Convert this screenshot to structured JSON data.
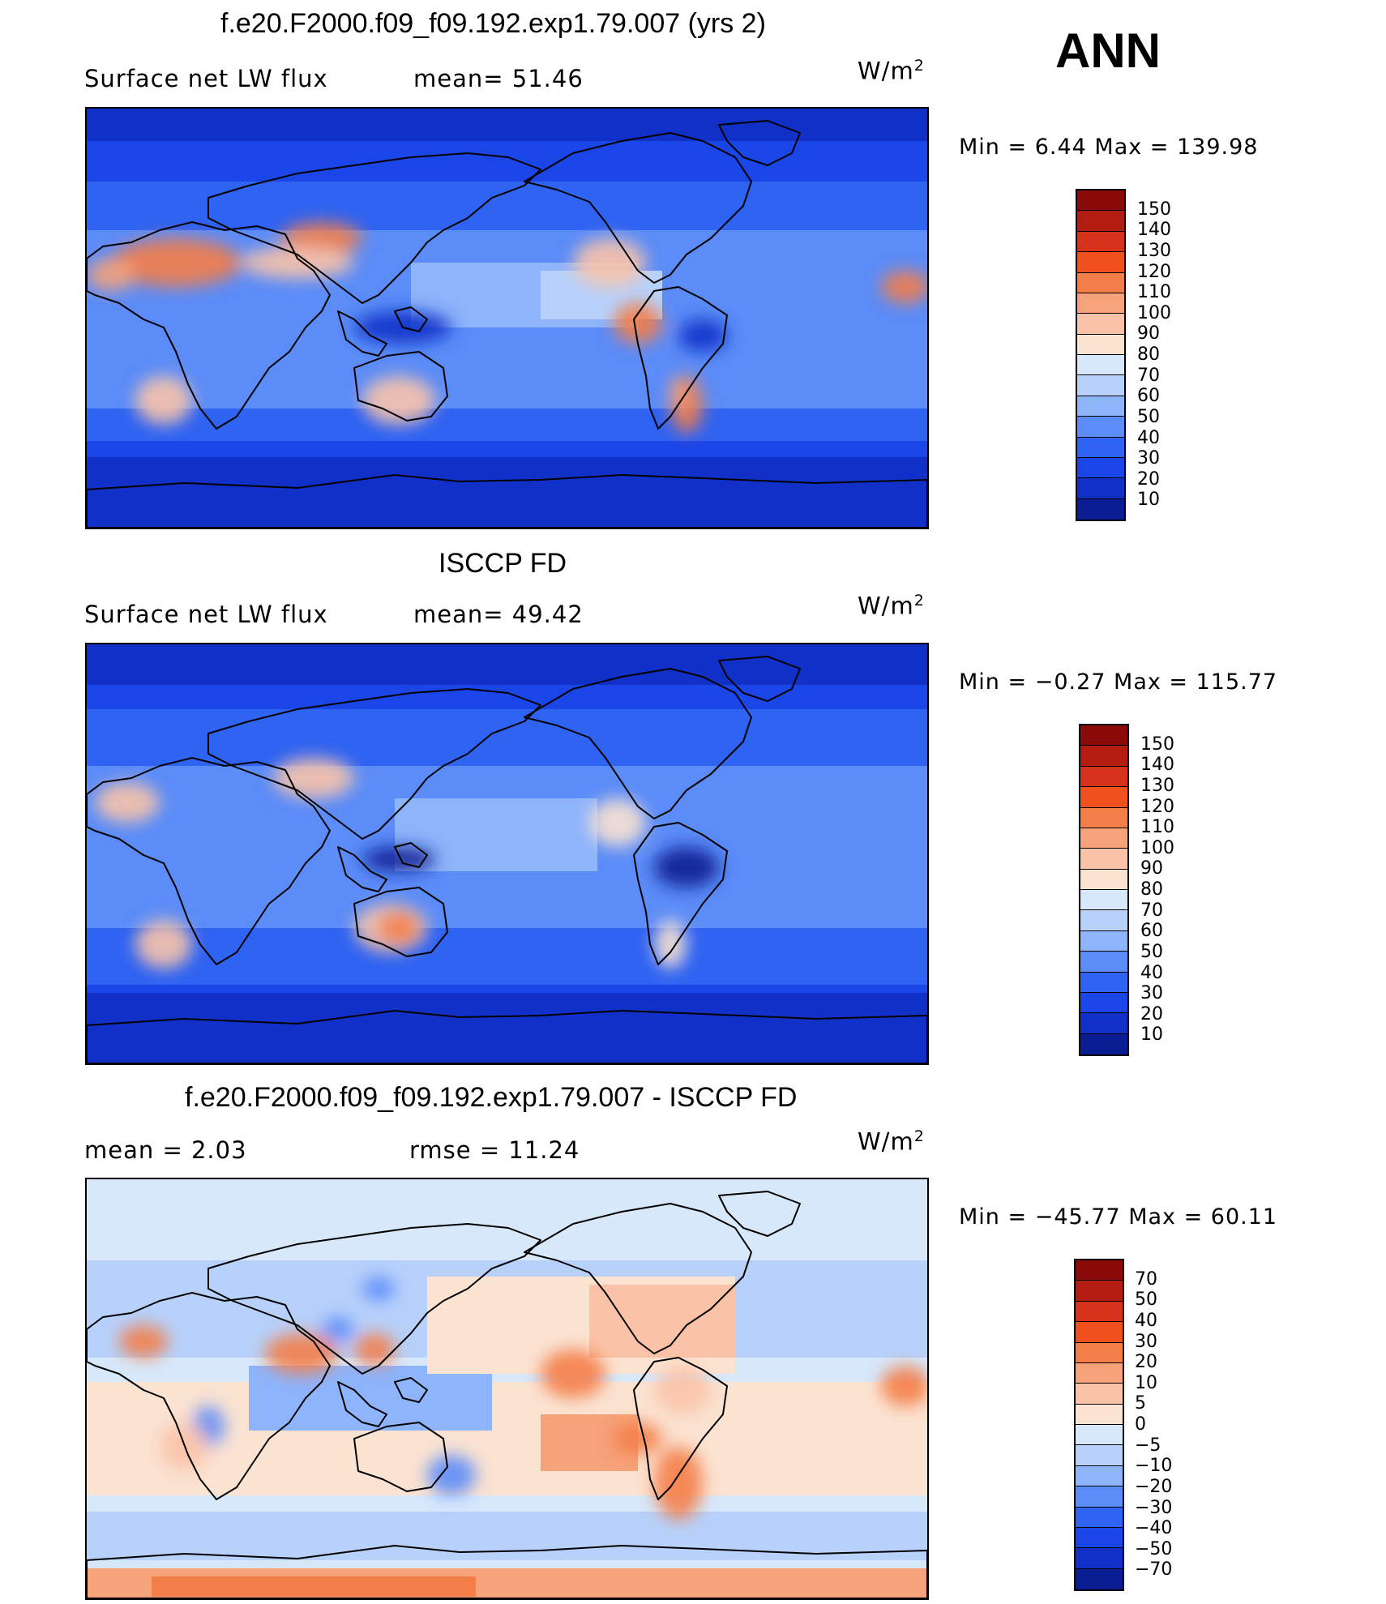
{
  "season": "ANN",
  "panels": [
    {
      "id": "model",
      "title": "f.e20.F2000.f09_f09.192.exp1.79.007 (yrs 2)",
      "left_text": "Surface net LW flux",
      "mid_text": "mean=  51.46",
      "units_main": "W/m",
      "units_sup": "2",
      "minmax": "Min =   6.44 Max = 139.98",
      "palette": "lw",
      "colorbar_colors": [
        "#8b0a0a",
        "#b31c10",
        "#d6311a",
        "#f0501e",
        "#f47e48",
        "#f6a27a",
        "#fac3a8",
        "#fbe3d2",
        "#d7e8fb",
        "#b7d1fb",
        "#8eb4fb",
        "#5b8cf8",
        "#2f63f2",
        "#1a46e8",
        "#1030c8",
        "#0a1d92"
      ],
      "colorbar_labels": [
        "150",
        "140",
        "130",
        "120",
        "110",
        "100",
        "90",
        "80",
        "70",
        "60",
        "50",
        "40",
        "30",
        "20",
        "10"
      ]
    },
    {
      "id": "obs",
      "title": "ISCCP FD",
      "left_text": "Surface net LW flux",
      "mid_text": "mean=  49.42",
      "units_main": "W/m",
      "units_sup": "2",
      "minmax": "Min =  −0.27 Max = 115.77",
      "palette": "lw",
      "colorbar_colors": [
        "#8b0a0a",
        "#b31c10",
        "#d6311a",
        "#f0501e",
        "#f47e48",
        "#f6a27a",
        "#fac3a8",
        "#fbe3d2",
        "#d7e8fb",
        "#b7d1fb",
        "#8eb4fb",
        "#5b8cf8",
        "#2f63f2",
        "#1a46e8",
        "#1030c8",
        "#0a1d92"
      ],
      "colorbar_labels": [
        "150",
        "140",
        "130",
        "120",
        "110",
        "100",
        "90",
        "80",
        "70",
        "60",
        "50",
        "40",
        "30",
        "20",
        "10"
      ]
    },
    {
      "id": "diff",
      "title": "f.e20.F2000.f09_f09.192.exp1.79.007 - ISCCP FD",
      "left_text": "mean =    2.03",
      "mid_text": "rmse =   11.24",
      "units_main": "W/m",
      "units_sup": "2",
      "minmax": "Min = −45.77 Max =  60.11",
      "palette": "diff",
      "colorbar_colors": [
        "#8b0a0a",
        "#b31c10",
        "#d6311a",
        "#f0501e",
        "#f47e48",
        "#f6a27a",
        "#fac3a8",
        "#fbe3d2",
        "#d7e8fb",
        "#b7d1fb",
        "#8eb4fb",
        "#5b8cf8",
        "#2f63f2",
        "#1a46e8",
        "#1030c8",
        "#0a1d92"
      ],
      "colorbar_labels": [
        "70",
        "50",
        "40",
        "30",
        "20",
        "10",
        "5",
        "0",
        "−5",
        "−10",
        "−20",
        "−30",
        "−40",
        "−50",
        "−70"
      ]
    }
  ]
}
